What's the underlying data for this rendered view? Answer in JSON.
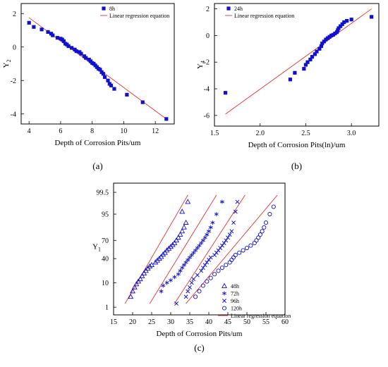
{
  "chart_data": [
    {
      "type": "scatter",
      "caption": "(a)",
      "xlabel": "Depth of Corrosion Pits/um",
      "ylabel": "Y",
      "ylabel_sub": "2",
      "xlim": [
        3.5,
        13.2
      ],
      "ylim": [
        -4.6,
        2.6
      ],
      "xticks": [
        4,
        6,
        8,
        10,
        12
      ],
      "yticks": [
        -4,
        -2,
        0,
        2
      ],
      "marker_color": "#1010d0",
      "line_color": "#e83030",
      "legend_position": "top-right",
      "legend": {
        "marker_label": "8h",
        "line_label": "Linear regression equation"
      },
      "series": [
        {
          "name": "8h",
          "points": [
            [
              4.0,
              1.45
            ],
            [
              4.3,
              1.2
            ],
            [
              4.8,
              1.05
            ],
            [
              5.2,
              0.9
            ],
            [
              5.4,
              0.8
            ],
            [
              5.5,
              0.7
            ],
            [
              5.8,
              0.55
            ],
            [
              6.0,
              0.5
            ],
            [
              6.1,
              0.45
            ],
            [
              6.2,
              0.35
            ],
            [
              6.3,
              0.2
            ],
            [
              6.4,
              0.15
            ],
            [
              6.5,
              0.05
            ],
            [
              6.7,
              -0.05
            ],
            [
              6.9,
              -0.15
            ],
            [
              7.0,
              -0.25
            ],
            [
              7.2,
              -0.3
            ],
            [
              7.3,
              -0.4
            ],
            [
              7.5,
              -0.55
            ],
            [
              7.6,
              -0.65
            ],
            [
              7.8,
              -0.75
            ],
            [
              7.9,
              -0.85
            ],
            [
              8.0,
              -0.95
            ],
            [
              8.1,
              -1.0
            ],
            [
              8.2,
              -1.1
            ],
            [
              8.3,
              -1.2
            ],
            [
              8.4,
              -1.3
            ],
            [
              8.5,
              -1.35
            ],
            [
              8.6,
              -1.5
            ],
            [
              8.7,
              -1.6
            ],
            [
              8.8,
              -1.8
            ],
            [
              9.0,
              -2.0
            ],
            [
              9.1,
              -2.2
            ],
            [
              9.2,
              -2.3
            ],
            [
              9.4,
              -2.5
            ],
            [
              10.2,
              -2.85
            ],
            [
              11.2,
              -3.3
            ],
            [
              12.7,
              -4.3
            ]
          ]
        }
      ],
      "regression": [
        [
          4.0,
          1.75
        ],
        [
          12.7,
          -4.3
        ]
      ]
    },
    {
      "type": "scatter",
      "caption": "(b)",
      "xlabel": "Depth of Corrosion Pits(ln)/um",
      "ylabel": "Y",
      "ylabel_sub": "4",
      "xlim": [
        1.5,
        3.3
      ],
      "ylim": [
        -6.8,
        2.4
      ],
      "xticks": [
        1.5,
        2.0,
        2.5,
        3.0
      ],
      "xtick_labels": [
        "1.5",
        "2.0",
        "2.5",
        "3.0"
      ],
      "yticks": [
        -6,
        -4,
        -2,
        0,
        2
      ],
      "marker_color": "#1010d0",
      "line_color": "#e83030",
      "legend_position": "top-left",
      "legend": {
        "marker_label": "24h",
        "line_label": "Linear regression equation"
      },
      "series": [
        {
          "name": "24h",
          "points": [
            [
              1.62,
              -4.3
            ],
            [
              2.33,
              -3.3
            ],
            [
              2.38,
              -2.8
            ],
            [
              2.48,
              -2.5
            ],
            [
              2.5,
              -2.2
            ],
            [
              2.52,
              -2.0
            ],
            [
              2.55,
              -1.8
            ],
            [
              2.57,
              -1.6
            ],
            [
              2.6,
              -1.4
            ],
            [
              2.62,
              -1.2
            ],
            [
              2.65,
              -1.0
            ],
            [
              2.67,
              -0.8
            ],
            [
              2.68,
              -0.6
            ],
            [
              2.7,
              -0.45
            ],
            [
              2.72,
              -0.3
            ],
            [
              2.74,
              -0.2
            ],
            [
              2.76,
              -0.1
            ],
            [
              2.78,
              0.0
            ],
            [
              2.8,
              0.05
            ],
            [
              2.82,
              0.15
            ],
            [
              2.84,
              0.25
            ],
            [
              2.85,
              0.4
            ],
            [
              2.86,
              0.55
            ],
            [
              2.88,
              0.7
            ],
            [
              2.9,
              0.85
            ],
            [
              2.92,
              1.0
            ],
            [
              2.95,
              1.1
            ],
            [
              3.0,
              1.2
            ],
            [
              3.22,
              1.4
            ]
          ]
        }
      ],
      "regression": [
        [
          1.62,
          -5.9
        ],
        [
          3.22,
          2.0
        ]
      ]
    },
    {
      "type": "scatter",
      "caption": "(c)",
      "xlabel": "Depth of Corrosion Pits/um",
      "ylabel": "Y",
      "ylabel_sub": "1",
      "xlim": [
        15,
        60
      ],
      "xticks": [
        15,
        20,
        25,
        30,
        35,
        40,
        45,
        50,
        55,
        60
      ],
      "yscale": "probability",
      "yticks": [
        1,
        10,
        40,
        70,
        95,
        99.5
      ],
      "ytick_labels": [
        "1",
        "10",
        "40",
        "70",
        "95",
        "99.5"
      ],
      "marker_color": "#1010d0",
      "line_color": "#e83030",
      "legend_position": "bottom-right",
      "legend": {
        "entries": [
          {
            "label": "48h",
            "marker": "triangle"
          },
          {
            "label": "72h",
            "marker": "star"
          },
          {
            "label": "96h",
            "marker": "x"
          },
          {
            "label": "120h",
            "marker": "circle"
          }
        ],
        "line_label": "Linear regression equation"
      },
      "series": [
        {
          "name": "48h",
          "marker": "triangle",
          "points": [
            [
              19.5,
              3
            ],
            [
              20.0,
              5
            ],
            [
              20.5,
              7
            ],
            [
              21.0,
              9
            ],
            [
              21.5,
              11
            ],
            [
              22.0,
              13
            ],
            [
              22.5,
              16
            ],
            [
              23.0,
              19
            ],
            [
              23.5,
              22
            ],
            [
              24.0,
              25
            ],
            [
              24.5,
              28
            ],
            [
              25.0,
              30
            ],
            [
              26.0,
              34
            ],
            [
              26.5,
              37
            ],
            [
              27.0,
              40
            ],
            [
              27.5,
              43
            ],
            [
              28.0,
              47
            ],
            [
              28.5,
              50
            ],
            [
              29.0,
              54
            ],
            [
              29.5,
              57
            ],
            [
              30.0,
              60
            ],
            [
              30.5,
              63
            ],
            [
              31.0,
              66
            ],
            [
              31.5,
              70
            ],
            [
              32.0,
              74
            ],
            [
              32.5,
              78
            ],
            [
              33.0,
              82
            ],
            [
              33.5,
              86
            ],
            [
              34.0,
              90
            ],
            [
              33.0,
              96
            ],
            [
              34.5,
              98.5
            ]
          ]
        },
        {
          "name": "72h",
          "marker": "star",
          "points": [
            [
              27.5,
              5
            ],
            [
              28.0,
              8
            ],
            [
              29.0,
              10
            ],
            [
              30.0,
              12
            ],
            [
              31.0,
              15
            ],
            [
              32.0,
              18
            ],
            [
              32.5,
              22
            ],
            [
              33.0,
              26
            ],
            [
              33.5,
              30
            ],
            [
              34.0,
              34
            ],
            [
              34.5,
              38
            ],
            [
              35.0,
              42
            ],
            [
              35.5,
              46
            ],
            [
              36.0,
              50
            ],
            [
              36.5,
              54
            ],
            [
              37.0,
              58
            ],
            [
              37.5,
              62
            ],
            [
              38.0,
              66
            ],
            [
              38.5,
              70
            ],
            [
              39.0,
              74
            ],
            [
              39.5,
              78
            ],
            [
              40.0,
              82
            ],
            [
              40.5,
              86
            ],
            [
              41.0,
              90
            ],
            [
              42.0,
              95
            ],
            [
              43.5,
              98.5
            ]
          ]
        },
        {
          "name": "96h",
          "marker": "x",
          "points": [
            [
              31.5,
              1.5
            ],
            [
              34.0,
              3
            ],
            [
              34.5,
              5
            ],
            [
              35.0,
              7
            ],
            [
              35.5,
              10
            ],
            [
              36.0,
              13
            ],
            [
              37.0,
              17
            ],
            [
              38.0,
              22
            ],
            [
              38.5,
              26
            ],
            [
              39.0,
              30
            ],
            [
              39.5,
              34
            ],
            [
              40.0,
              38
            ],
            [
              40.5,
              42
            ],
            [
              41.5,
              46
            ],
            [
              42.0,
              50
            ],
            [
              42.5,
              54
            ],
            [
              43.0,
              58
            ],
            [
              43.5,
              62
            ],
            [
              44.0,
              66
            ],
            [
              44.5,
              70
            ],
            [
              45.0,
              74
            ],
            [
              45.5,
              78
            ],
            [
              46.0,
              82
            ],
            [
              46.5,
              90
            ],
            [
              47.0,
              96
            ],
            [
              47.5,
              98.5
            ]
          ]
        },
        {
          "name": "120h",
          "marker": "circle",
          "points": [
            [
              36.5,
              3
            ],
            [
              37.5,
              5
            ],
            [
              38.5,
              8
            ],
            [
              39.5,
              11
            ],
            [
              40.5,
              14
            ],
            [
              41.5,
              18
            ],
            [
              42.5,
              22
            ],
            [
              43.5,
              26
            ],
            [
              44.5,
              30
            ],
            [
              45.5,
              34
            ],
            [
              46.0,
              38
            ],
            [
              46.5,
              42
            ],
            [
              47.0,
              46
            ],
            [
              48.0,
              50
            ],
            [
              49.0,
              54
            ],
            [
              50.0,
              58
            ],
            [
              51.0,
              62
            ],
            [
              52.0,
              66
            ],
            [
              52.5,
              70
            ],
            [
              53.0,
              74
            ],
            [
              53.5,
              78
            ],
            [
              54.0,
              82
            ],
            [
              54.5,
              86
            ],
            [
              55.0,
              90
            ],
            [
              56.0,
              95
            ],
            [
              57.0,
              97.5
            ]
          ]
        }
      ],
      "regression": [
        {
          "name": "48h",
          "p1": [
            18,
            1.5
          ],
          "p2": [
            34.5,
            99.3
          ]
        },
        {
          "name": "72h",
          "p1": [
            24.5,
            1.5
          ],
          "p2": [
            42,
            99.3
          ]
        },
        {
          "name": "96h",
          "p1": [
            31,
            1.5
          ],
          "p2": [
            49.5,
            99.3
          ]
        },
        {
          "name": "120h",
          "p1": [
            34,
            1.5
          ],
          "p2": [
            58,
            99.3
          ]
        }
      ]
    }
  ]
}
